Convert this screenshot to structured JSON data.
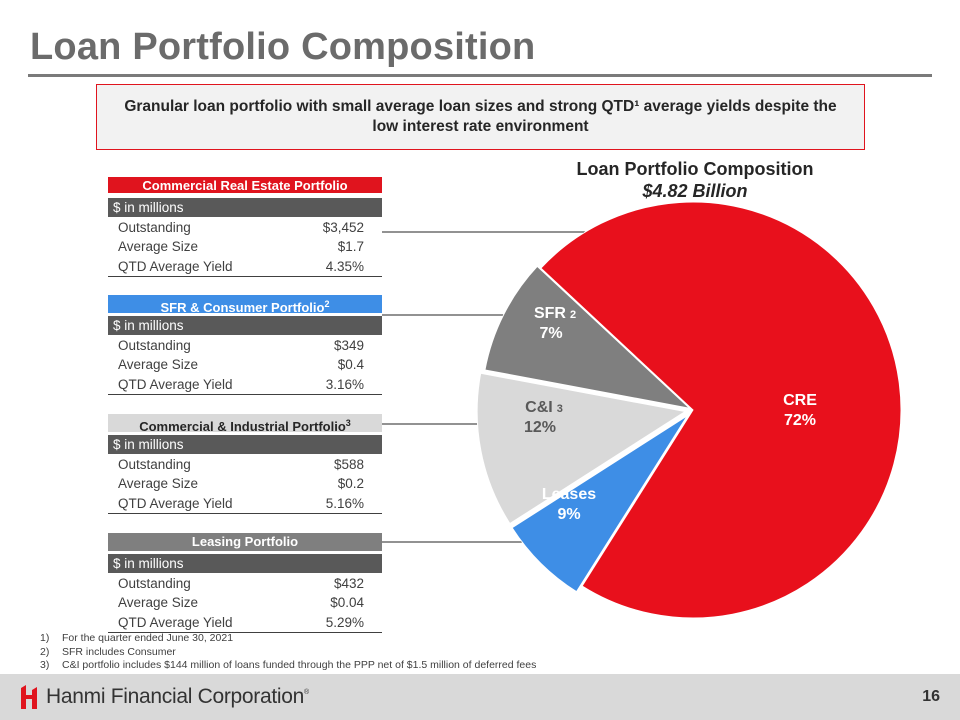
{
  "title": "Loan Portfolio Composition",
  "callout": "Granular loan portfolio with small average loan sizes and strong QTD¹ average yields despite the low interest rate environment",
  "tables": {
    "cre": {
      "header": "Commercial Real Estate Portfolio",
      "sup": "",
      "subheader": "$ in millions",
      "rows": [
        {
          "label": "Outstanding",
          "value": "$3,452"
        },
        {
          "label": "Average Size",
          "value": "$1.7"
        },
        {
          "label": "QTD Average Yield",
          "value": "4.35%"
        }
      ]
    },
    "sfr": {
      "header": "SFR & Consumer Portfolio",
      "sup": "2",
      "subheader": "$ in millions",
      "rows": [
        {
          "label": "Outstanding",
          "value": "$349"
        },
        {
          "label": "Average Size",
          "value": "$0.4"
        },
        {
          "label": "QTD Average Yield",
          "value": "3.16%"
        }
      ]
    },
    "ci": {
      "header": "Commercial & Industrial Portfolio",
      "sup": "3",
      "subheader": "$ in millions",
      "rows": [
        {
          "label": "Outstanding",
          "value": "$588"
        },
        {
          "label": "Average Size",
          "value": "$0.2"
        },
        {
          "label": "QTD Average Yield",
          "value": "5.16%"
        }
      ]
    },
    "leasing": {
      "header": "Leasing Portfolio",
      "sup": "",
      "subheader": "$ in millions",
      "rows": [
        {
          "label": "Outstanding",
          "value": "$432"
        },
        {
          "label": "Average Size",
          "value": "$0.04"
        },
        {
          "label": "QTD Average Yield",
          "value": "5.29%"
        }
      ]
    }
  },
  "chart_data": {
    "type": "pie",
    "title": "Loan Portfolio Composition",
    "subtitle": "$4.82 Billion",
    "slices": [
      {
        "label": "CRE",
        "sup": "",
        "pct_label": "72%",
        "value": 72,
        "color": "#e8101c"
      },
      {
        "label": "SFR",
        "sup": "2",
        "pct_label": "7%",
        "value": 7,
        "color": "#3e8ee6"
      },
      {
        "label": "C&I",
        "sup": "3",
        "pct_label": "12%",
        "value": 12,
        "color": "#d9d9d9"
      },
      {
        "label": "Leases",
        "sup": "",
        "pct_label": "9%",
        "value": 9,
        "color": "#7f7f7f"
      }
    ]
  },
  "footnotes": [
    {
      "num": "1)",
      "text": "For the quarter ended June 30, 2021"
    },
    {
      "num": "2)",
      "text": "SFR includes Consumer"
    },
    {
      "num": "3)",
      "text": "C&I portfolio includes $144 million of loans funded through the PPP net of $1.5 million of deferred fees"
    }
  ],
  "footer": {
    "company": "Hanmi Financial Corporation",
    "trademark": "®",
    "page": "16",
    "brand_color": "#e0141e"
  }
}
